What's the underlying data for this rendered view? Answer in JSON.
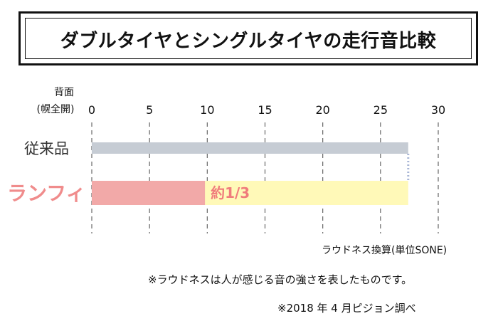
{
  "title": "ダブルタイヤとシングルタイヤの走行音比較",
  "chart_data": {
    "type": "bar",
    "orientation": "horizontal",
    "axis_corner_label": [
      "背面",
      "(幌全開)"
    ],
    "xticks": [
      0,
      5,
      10,
      15,
      20,
      25,
      30
    ],
    "xlim": [
      0,
      30
    ],
    "xlabel": "ラウドネス換算(単位SONE)",
    "grid": "dashed vertical",
    "categories": [
      "従来品",
      "ランフィ"
    ],
    "category_colors": [
      "#333333",
      "#f08c8c"
    ],
    "bars": [
      {
        "category": "従来品",
        "value": 27.4,
        "color": "#c6ccd4"
      },
      {
        "category": "ランフィ",
        "value": 9.8,
        "color": "#f2a9a8",
        "reference_value": 27.4,
        "reference_color": "#fff9b8",
        "annotation": "約1/3",
        "annotation_color": "#f07c7c"
      }
    ]
  },
  "notes": [
    "※ラウドネスは人が感じる音の強さを表したものです。",
    "※2018 年 4 月ピジョン調べ"
  ]
}
